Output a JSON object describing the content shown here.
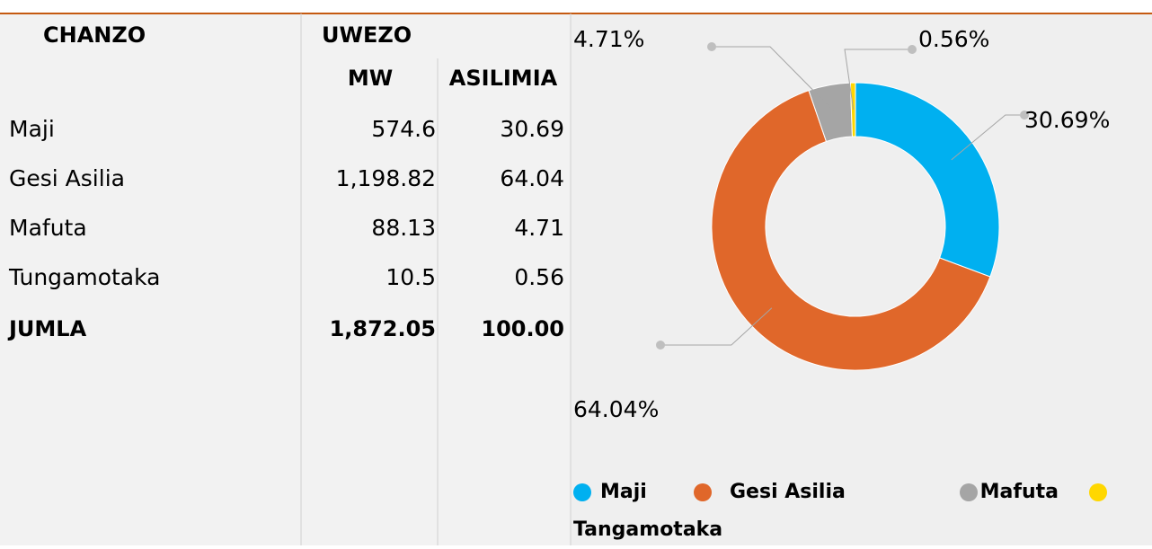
{
  "table": {
    "header": [
      "CHANZO",
      "UWEZO"
    ],
    "subheader": [
      "MW",
      "ASILIMIA"
    ],
    "rows": [
      [
        "Maji",
        "574.6",
        "30.69"
      ],
      [
        "Gesi Asilia",
        "1,198.82",
        "64.04"
      ],
      [
        "Mafuta",
        "88.13",
        "4.71"
      ],
      [
        "Tungamotaka",
        "10.5",
        "0.56"
      ]
    ],
    "total": [
      "JUMLA",
      "1,872.05",
      "100.00"
    ]
  },
  "chart_data": {
    "type": "donut",
    "categories": [
      "Maji",
      "Gesi Asilia",
      "Mafuta",
      "Tangamotaka"
    ],
    "values": [
      30.69,
      64.04,
      4.71,
      0.56
    ],
    "value_labels": [
      "30.69%",
      "64.04%",
      "4.71%",
      "0.56%"
    ],
    "colors": [
      "#00b0f0",
      "#e0672a",
      "#a5a5a5",
      "#ffd700"
    ],
    "legend": "bottom"
  }
}
